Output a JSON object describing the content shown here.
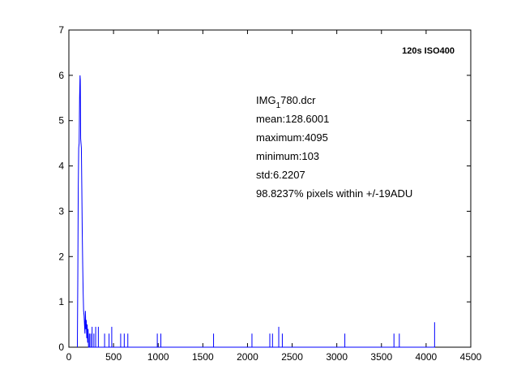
{
  "chart_data": {
    "type": "line",
    "xlim": [
      0,
      4500
    ],
    "ylim": [
      0,
      7
    ],
    "xticks": [
      0,
      500,
      1000,
      1500,
      2000,
      2500,
      3000,
      3500,
      4000,
      4500
    ],
    "yticks": [
      0,
      1,
      2,
      3,
      4,
      5,
      6,
      7
    ],
    "annotations": [
      "120s ISO400",
      "IMG_1780.dcr",
      "mean:128.6001",
      "maximum:4095",
      "minimum:103",
      "std:6.2207",
      "98.8237% pixels within +/-19ADU"
    ],
    "x": [
      95,
      100,
      105,
      110,
      115,
      120,
      125,
      128,
      132,
      136,
      140,
      145,
      150,
      155,
      160,
      165,
      170,
      175,
      180,
      185,
      190,
      195,
      200,
      205,
      210,
      215,
      220,
      230,
      230,
      230,
      245,
      245,
      245,
      260,
      260,
      260,
      280,
      280,
      280,
      300,
      300,
      300,
      330,
      330,
      330,
      400,
      400,
      400,
      450,
      450,
      450,
      480,
      480,
      480,
      580,
      580,
      580,
      620,
      620,
      620,
      660,
      660,
      660,
      990,
      990,
      990,
      1030,
      1030,
      1030,
      1620,
      1620,
      1620,
      2050,
      2050,
      2050,
      2250,
      2250,
      2250,
      2280,
      2280,
      2280,
      2350,
      2350,
      2350,
      2390,
      2390,
      2390,
      3090,
      3090,
      3090,
      3640,
      3640,
      3640,
      3700,
      3700,
      3700,
      4095,
      4095,
      4095
    ],
    "series": [
      {
        "color": "#0000ff",
        "values": [
          0,
          1.5,
          3.5,
          4.4,
          4.5,
          5.5,
          6.0,
          5.9,
          4.6,
          4.5,
          4.4,
          3.5,
          2.5,
          1.8,
          1.2,
          0.8,
          0.7,
          0.5,
          0.3,
          0.8,
          0.4,
          0.6,
          0.2,
          0.5,
          0.1,
          0.4,
          0,
          0,
          0.3,
          0,
          0,
          0.3,
          0,
          0,
          0.45,
          0,
          0,
          0.3,
          0,
          0,
          0.45,
          0,
          0,
          0.45,
          0,
          0,
          0.3,
          0,
          0,
          0.3,
          0,
          0,
          0.45,
          0,
          0,
          0.3,
          0,
          0,
          0.3,
          0,
          0,
          0.3,
          0,
          0,
          0.3,
          0,
          0,
          0.3,
          0,
          0,
          0.3,
          0,
          0,
          0.3,
          0,
          0,
          0.3,
          0,
          0,
          0.3,
          0,
          0,
          0.45,
          0,
          0,
          0.3,
          0,
          0,
          0.3,
          0,
          0,
          0.3,
          0,
          0,
          0.3,
          0,
          0,
          0.55,
          0
        ]
      }
    ]
  }
}
